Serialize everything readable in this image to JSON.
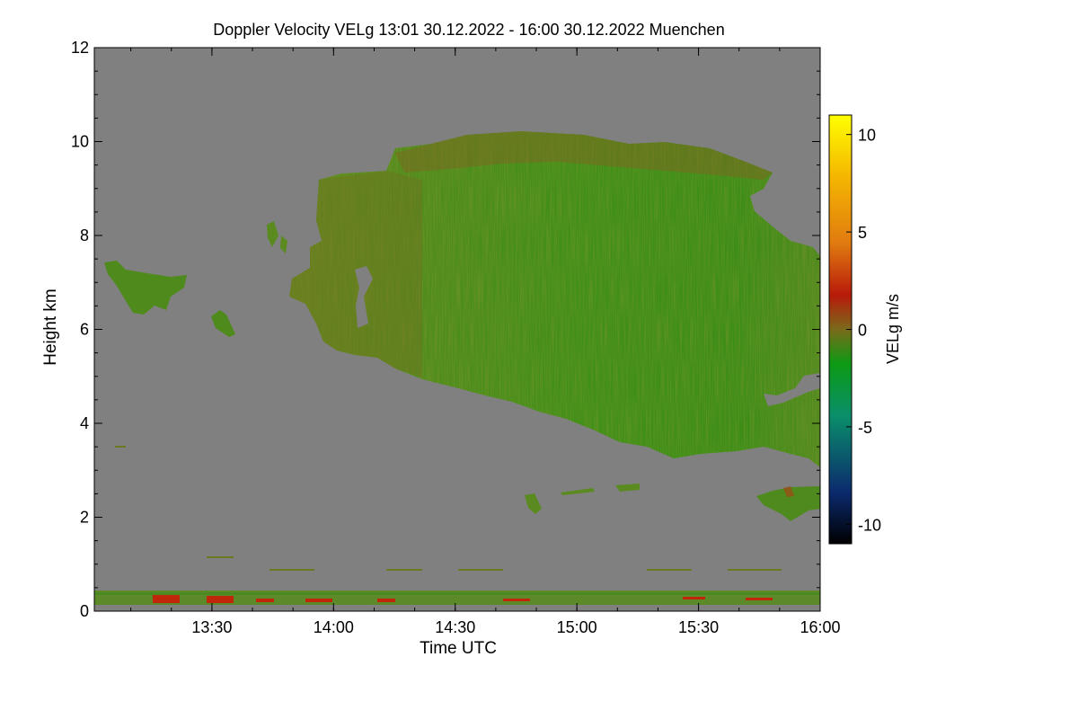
{
  "chart_data": {
    "type": "heatmap",
    "title": "Doppler Velocity VELg   13:01 30.12.2022 - 16:00 30.12.2022 Muenchen",
    "xlabel": "Time UTC",
    "ylabel": "Height km",
    "x_start": "13:01",
    "x_end": "16:00",
    "x_ticks": [
      "13:30",
      "14:00",
      "14:30",
      "15:00",
      "15:30",
      "16:00"
    ],
    "ylim": [
      0,
      12
    ],
    "y_ticks": [
      "0",
      "2",
      "4",
      "6",
      "8",
      "10",
      "12"
    ],
    "grid": false,
    "colorbar": {
      "label": "VELg m/s",
      "range": [
        -11,
        11
      ],
      "ticks": [
        "-10",
        "-5",
        "0",
        "5",
        "10"
      ],
      "colors": [
        "#000000",
        "#0b2a6e",
        "#0a8f6a",
        "#0c9a14",
        "#7a6a1a",
        "#b81a0a",
        "#e07a10",
        "#f5b800",
        "#ffff00"
      ]
    },
    "background_color": "#808080",
    "regions": [
      {
        "name": "main-cloud",
        "t_start": "13:50",
        "t_end": "16:00",
        "h_bottom": 3.2,
        "h_top": 10.2,
        "velocity_typical": -1
      },
      {
        "name": "left-cloud-patch",
        "t_start": "13:04",
        "t_end": "13:23",
        "h_bottom": 6.3,
        "h_top": 7.4,
        "velocity_typical": -1
      },
      {
        "name": "small-cloud-patch",
        "t_start": "13:30",
        "t_end": "13:35",
        "h_bottom": 5.8,
        "h_top": 6.5,
        "velocity_typical": -1
      },
      {
        "name": "low-cloud-band",
        "t_start": "15:48",
        "t_end": "16:00",
        "h_bottom": 1.8,
        "h_top": 2.6,
        "velocity_typical": 0
      },
      {
        "name": "near-surface-layer",
        "t_start": "13:01",
        "t_end": "16:00",
        "h_bottom": 0.0,
        "h_top": 0.35,
        "velocity_typical": 1
      }
    ]
  }
}
